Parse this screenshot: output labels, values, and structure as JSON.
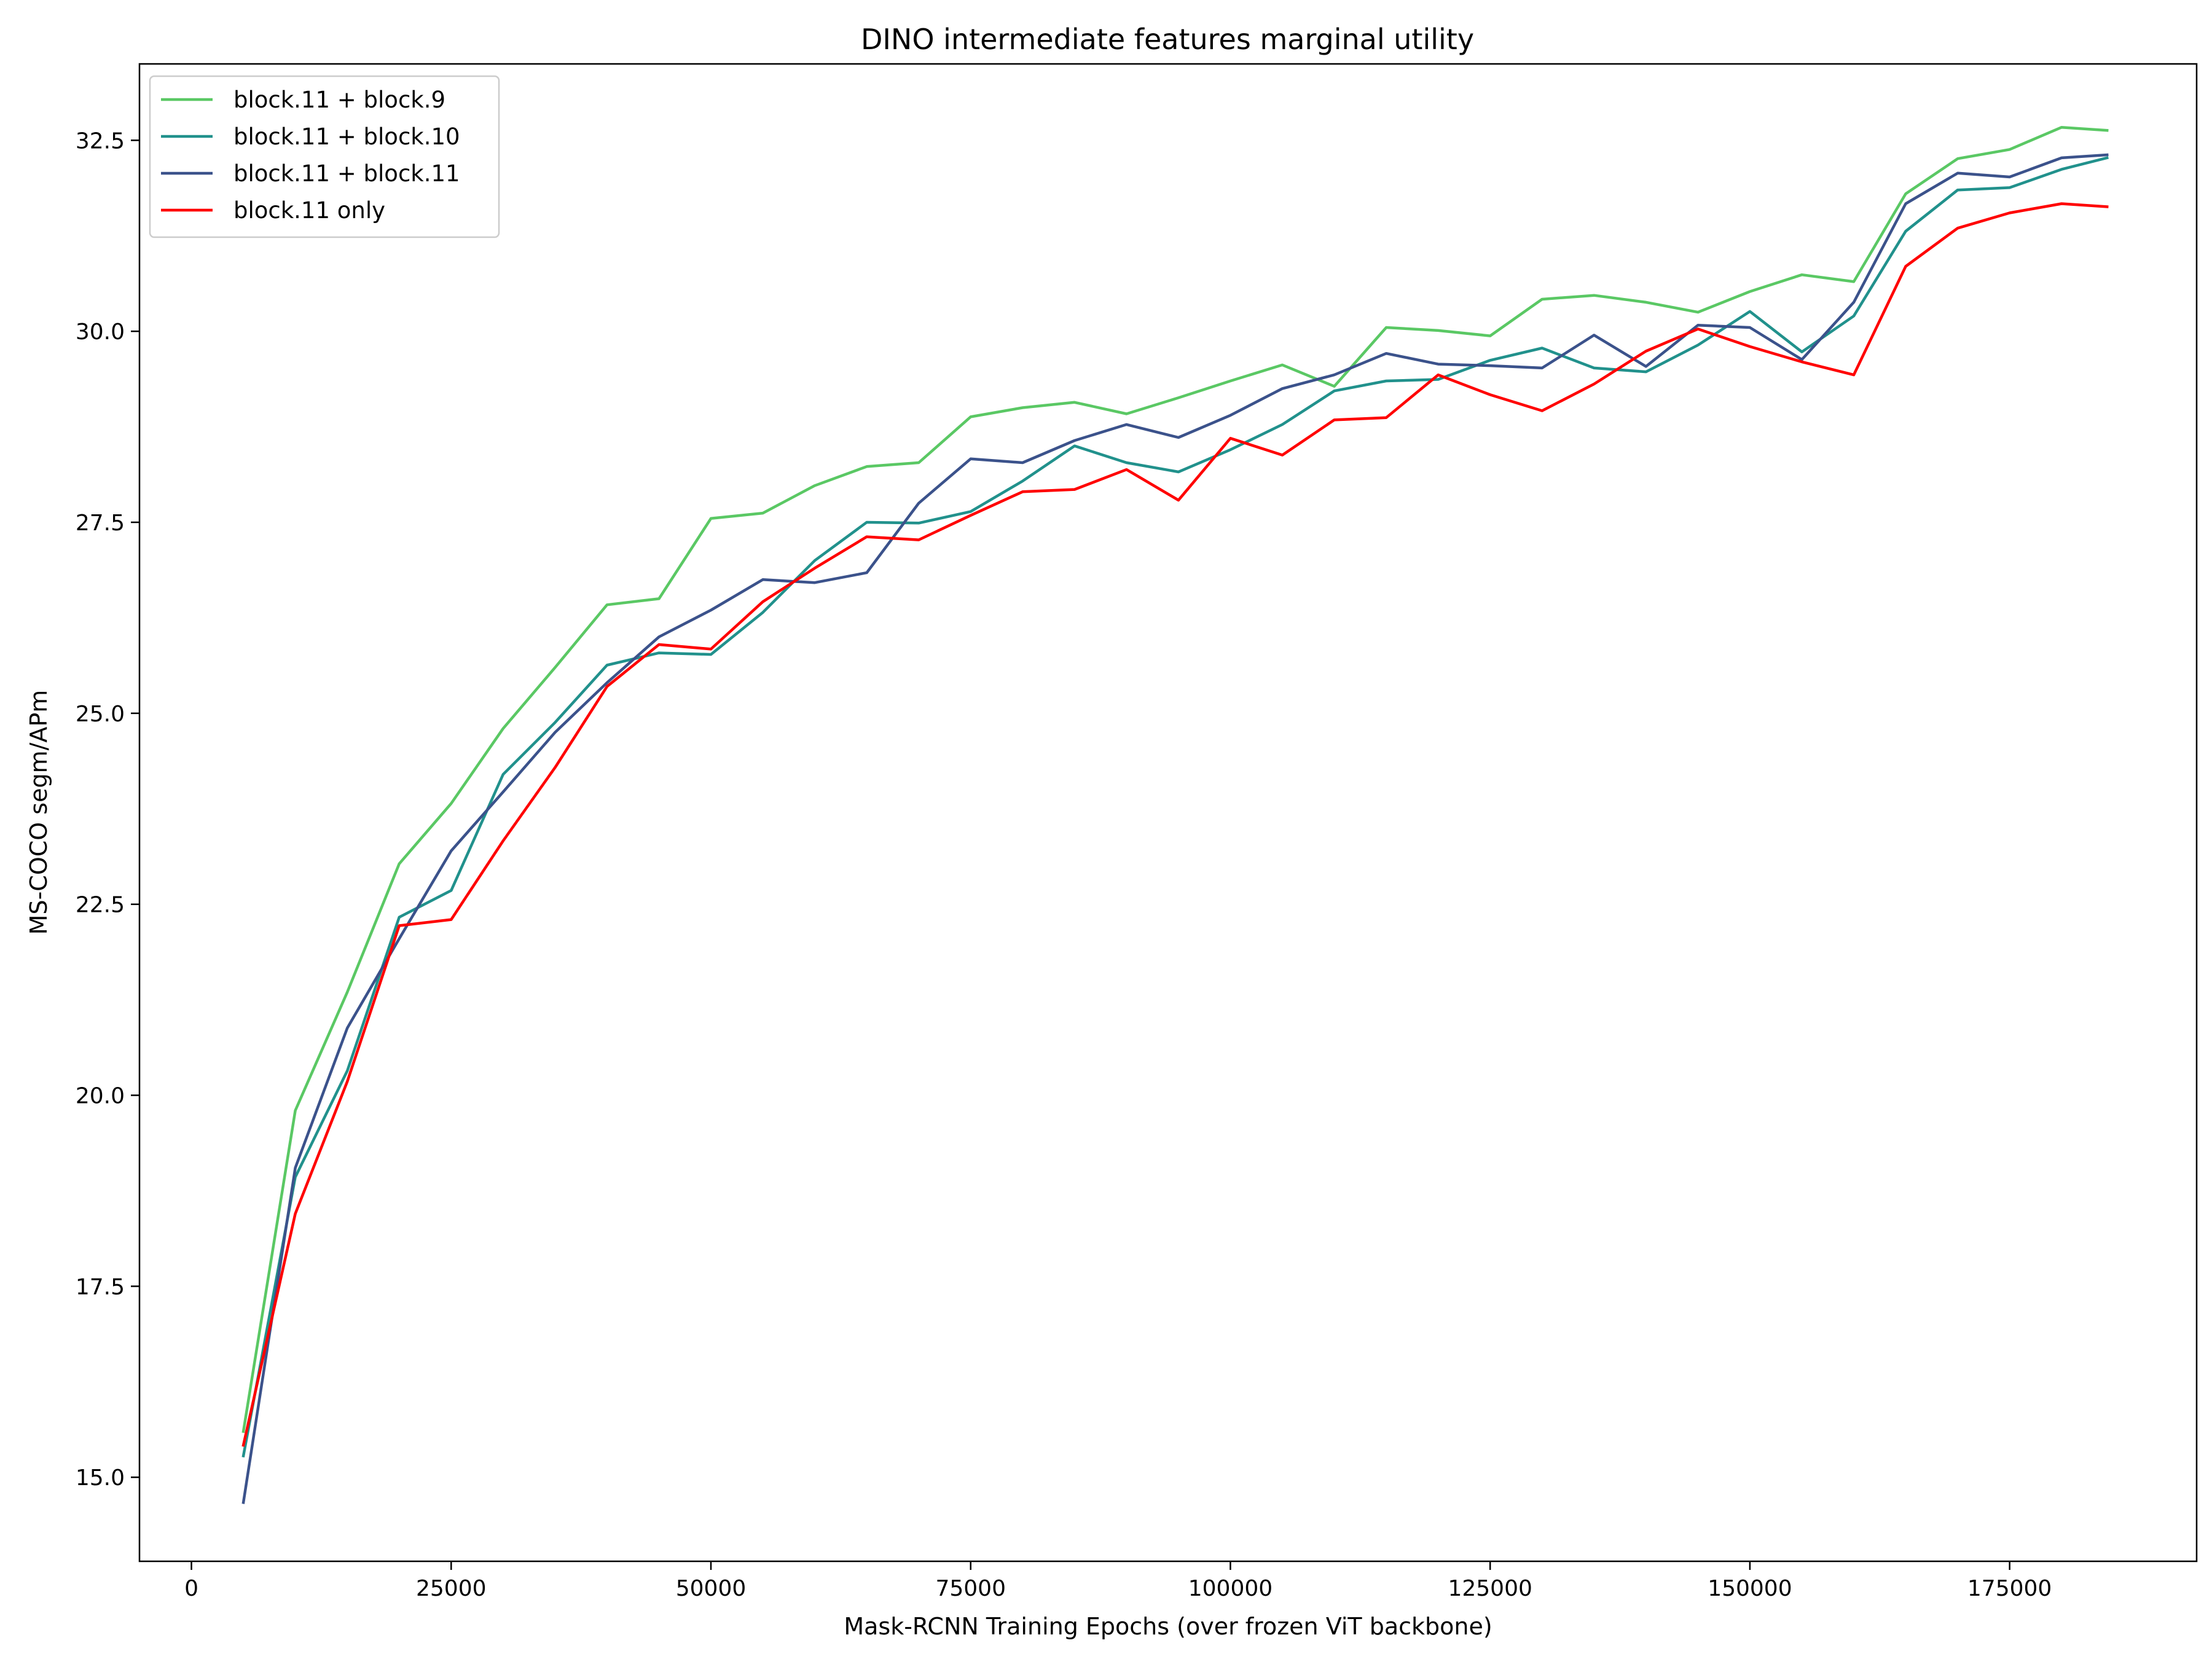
{
  "chart_data": {
    "type": "line",
    "title": "DINO intermediate features marginal utility",
    "xlabel": "Mask-RCNN Training Epochs (over frozen ViT backbone)",
    "ylabel": "MS-COCO segm/APm",
    "xlim": [
      -5000,
      193000
    ],
    "ylim": [
      13.9,
      33.5
    ],
    "xticks": [
      0,
      25000,
      50000,
      75000,
      100000,
      125000,
      150000,
      175000
    ],
    "xtick_labels": [
      "0",
      "25000",
      "50000",
      "75000",
      "100000",
      "125000",
      "150000",
      "175000"
    ],
    "yticks": [
      15.0,
      17.5,
      20.0,
      22.5,
      25.0,
      27.5,
      30.0,
      32.5
    ],
    "ytick_labels": [
      "15.0",
      "17.5",
      "20.0",
      "22.5",
      "25.0",
      "27.5",
      "30.0",
      "32.5"
    ],
    "grid": false,
    "legend_position": "upper-left",
    "x": [
      5000,
      10000,
      15000,
      20000,
      25000,
      30000,
      35000,
      40000,
      45000,
      50000,
      55000,
      60000,
      65000,
      70000,
      75000,
      80000,
      85000,
      90000,
      95000,
      100000,
      105000,
      110000,
      115000,
      120000,
      125000,
      130000,
      135000,
      140000,
      145000,
      150000,
      155000,
      160000,
      165000,
      170000,
      175000,
      180000,
      184375
    ],
    "series": [
      {
        "name": "block.11 + block.9",
        "color": "#5ac864",
        "values": [
          15.6,
          19.8,
          21.35,
          23.03,
          23.82,
          24.8,
          25.6,
          26.42,
          26.5,
          27.55,
          27.62,
          27.98,
          28.23,
          28.28,
          28.88,
          29.0,
          29.07,
          28.92,
          29.13,
          29.35,
          29.56,
          29.28,
          30.05,
          30.01,
          29.94,
          30.42,
          30.47,
          30.38,
          30.25,
          30.52,
          30.74,
          30.65,
          31.8,
          32.26,
          32.38,
          32.67,
          32.63
        ]
      },
      {
        "name": "block.11 + block.10",
        "color": "#21918c",
        "values": [
          15.28,
          18.93,
          20.32,
          22.33,
          22.68,
          24.2,
          24.88,
          25.63,
          25.79,
          25.77,
          26.32,
          27.0,
          27.5,
          27.49,
          27.64,
          28.04,
          28.5,
          28.28,
          28.16,
          28.45,
          28.78,
          29.22,
          29.35,
          29.37,
          29.62,
          29.78,
          29.52,
          29.47,
          29.82,
          30.26,
          29.73,
          30.2,
          31.31,
          31.85,
          31.88,
          32.12,
          32.27
        ]
      },
      {
        "name": "block.11 + block.11",
        "color": "#3b528b",
        "values": [
          14.67,
          19.05,
          20.88,
          22.05,
          23.2,
          23.97,
          24.75,
          25.4,
          26.0,
          26.35,
          26.75,
          26.71,
          26.84,
          27.75,
          28.33,
          28.28,
          28.57,
          28.78,
          28.61,
          28.9,
          29.25,
          29.43,
          29.71,
          29.57,
          29.55,
          29.52,
          29.95,
          29.54,
          30.08,
          30.05,
          29.63,
          30.38,
          31.67,
          32.07,
          32.02,
          32.27,
          32.31
        ]
      },
      {
        "name": "block.11 only",
        "color": "#ff0000",
        "values": [
          15.42,
          18.45,
          20.18,
          22.22,
          22.3,
          23.33,
          24.29,
          25.35,
          25.9,
          25.84,
          26.46,
          26.9,
          27.31,
          27.27,
          27.59,
          27.9,
          27.93,
          28.19,
          27.79,
          28.6,
          28.38,
          28.84,
          28.87,
          29.43,
          29.17,
          28.96,
          29.31,
          29.74,
          30.03,
          29.8,
          29.6,
          29.43,
          30.85,
          31.35,
          31.55,
          31.67,
          31.63
        ]
      }
    ]
  }
}
